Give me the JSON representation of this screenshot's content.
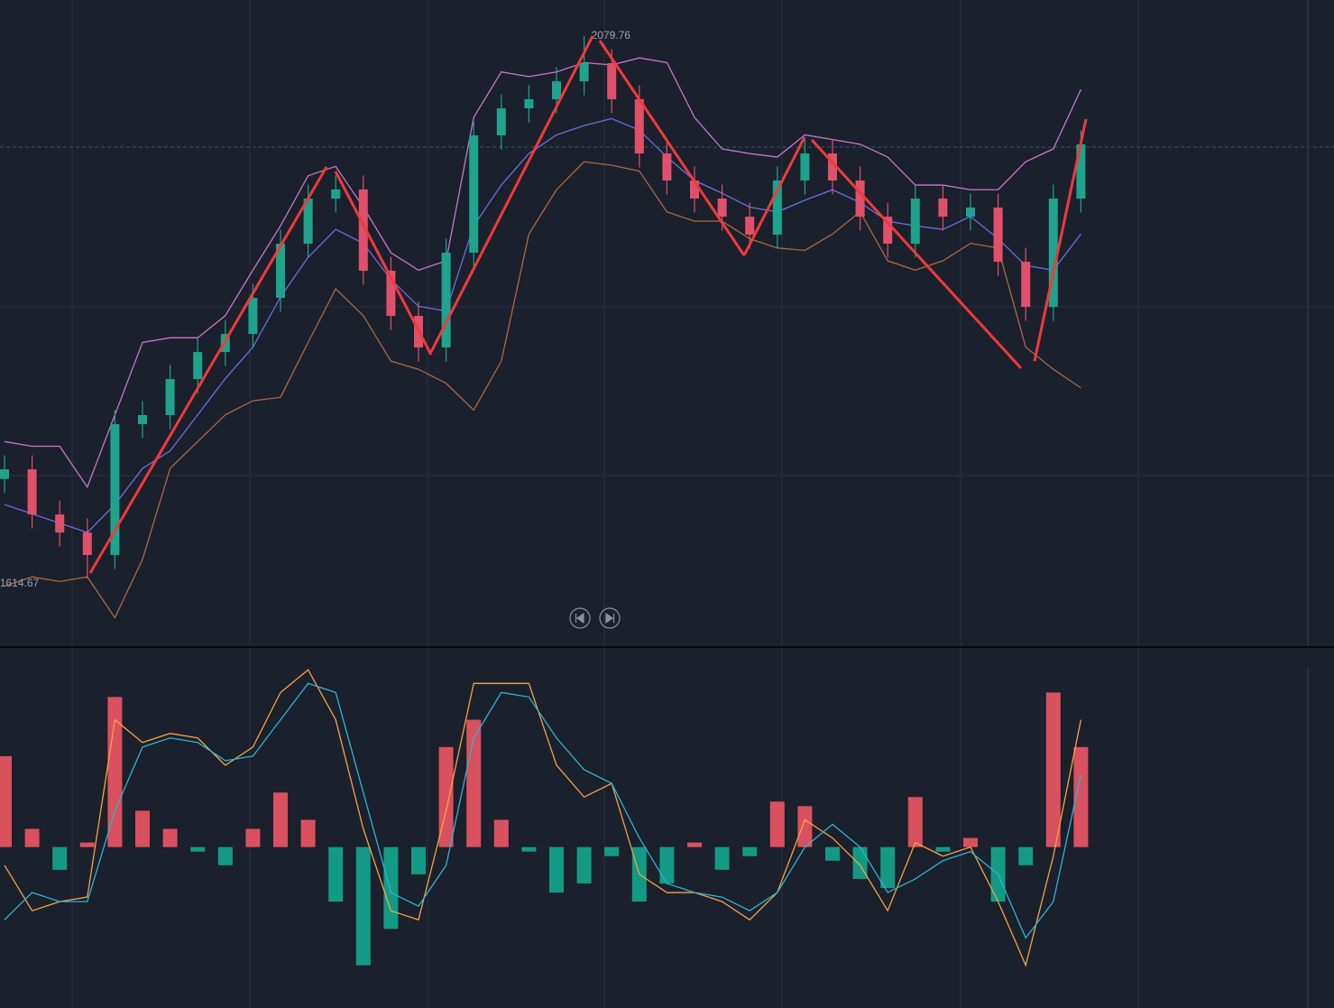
{
  "chart_data": [
    {
      "type": "candlestick",
      "categories": [
        null,
        null,
        null,
        null,
        null,
        null,
        null,
        null,
        null,
        null,
        null,
        null,
        null,
        null,
        null,
        null,
        null,
        null,
        null,
        null,
        null,
        null,
        null,
        null,
        null,
        null,
        null,
        null,
        null,
        null,
        null,
        null,
        null,
        null,
        null,
        null,
        null,
        null,
        null,
        null
      ],
      "open": [
        1700.0,
        1708.2,
        1669.5,
        1654.0,
        1634.7,
        1746.9,
        1754.7,
        1785.6,
        1808.8,
        1824.3,
        1855.3,
        1901.7,
        1940.4,
        1948.2,
        1878.5,
        1839.8,
        1812.7,
        1894.0,
        1994.6,
        2017.8,
        2025.6,
        2041.0,
        2056.5,
        2025.6,
        1979.1,
        1955.9,
        1940.4,
        1924.9,
        1909.5,
        1955.9,
        1979.1,
        1955.9,
        1924.9,
        1901.7,
        1940.4,
        1924.9,
        1932.7,
        1886.2,
        1847.5,
        1940.4
      ],
      "high": [
        1720.2,
        1720.2,
        1681.5,
        1666.0,
        1758.9,
        1766.7,
        1797.6,
        1820.8,
        1836.3,
        1867.3,
        1913.7,
        1952.4,
        1960.2,
        1960.2,
        1890.5,
        1851.8,
        1906.0,
        2006.6,
        2029.8,
        2037.6,
        2053.0,
        2079.76,
        2068.5,
        2037.6,
        1991.1,
        1967.9,
        1952.4,
        1936.9,
        1967.9,
        1991.1,
        1991.1,
        1967.9,
        1936.9,
        1952.4,
        1952.4,
        1944.7,
        1944.7,
        1898.2,
        1952.4,
        1998.9
      ],
      "low": [
        1688.0,
        1657.5,
        1642.0,
        1614.67,
        1622.7,
        1734.9,
        1742.7,
        1773.6,
        1796.8,
        1812.3,
        1843.3,
        1889.7,
        1928.4,
        1866.5,
        1827.8,
        1800.7,
        1800.7,
        1882.0,
        1982.6,
        2005.8,
        2013.6,
        2029.0,
        2013.6,
        1967.1,
        1943.9,
        1928.4,
        1912.9,
        1897.5,
        1897.5,
        1943.9,
        1943.9,
        1912.9,
        1889.7,
        1889.7,
        1912.9,
        1912.9,
        1874.2,
        1835.5,
        1835.5,
        1928.4
      ],
      "close": [
        1708.2,
        1669.5,
        1654.0,
        1634.7,
        1746.9,
        1754.7,
        1785.6,
        1808.8,
        1824.3,
        1855.3,
        1901.7,
        1940.4,
        1948.2,
        1878.5,
        1839.8,
        1812.7,
        1894.0,
        1994.6,
        2017.8,
        2025.6,
        2041.0,
        2056.5,
        2025.6,
        1979.1,
        1955.9,
        1940.4,
        1924.9,
        1909.5,
        1955.9,
        1979.1,
        1955.9,
        1924.9,
        1901.7,
        1940.4,
        1924.9,
        1932.7,
        1886.2,
        1847.5,
        1940.4,
        1986.9
      ],
      "up_color": "#1fa38c",
      "down_color": "#e0506a",
      "bands": [
        {
          "color": "#c678c9",
          "values": [
            1732,
            1728,
            1728,
            1693,
            1755,
            1817,
            1821,
            1821,
            1840,
            1879,
            1917,
            1960,
            1968,
            1933,
            1894,
            1879,
            1887,
            2010,
            2049,
            2045,
            2049,
            2057,
            2055,
            2061,
            2057,
            2010,
            1983,
            1979,
            1976,
            1995,
            1991,
            1987,
            1976,
            1952,
            1952,
            1948,
            1948,
            1972,
            1983,
            2034
          ]
        },
        {
          "color": "#6a6ee0",
          "values": [
            1678,
            1670,
            1662,
            1654,
            1678,
            1709,
            1724,
            1755,
            1786,
            1813,
            1856,
            1890,
            1914,
            1902,
            1871,
            1848,
            1844,
            1917,
            1952,
            1979,
            1995,
            2003,
            2009,
            1999,
            1976,
            1956,
            1945,
            1933,
            1929,
            1939,
            1948,
            1937,
            1921,
            1917,
            1914,
            1925,
            1906,
            1883,
            1879,
            1910
          ]
        },
        {
          "color": "#a86a44",
          "values": [
            1608,
            1616,
            1612,
            1616,
            1581,
            1631,
            1709,
            1732,
            1755,
            1767,
            1770,
            1817,
            1863,
            1840,
            1801,
            1794,
            1782,
            1759,
            1801,
            1910,
            1948,
            1972,
            1969,
            1964,
            1929,
            1921,
            1921,
            1906,
            1898,
            1896,
            1910,
            1929,
            1887,
            1879,
            1887,
            1902,
            1898,
            1813,
            1794,
            1778
          ]
        }
      ],
      "high_label": "2079.76",
      "low_label": "1614.67",
      "ylim": [
        1555.8,
        2110.7
      ]
    },
    {
      "type": "macd",
      "categories": [
        null,
        null,
        null,
        null,
        null,
        null,
        null,
        null,
        null,
        null,
        null,
        null,
        null,
        null,
        null,
        null,
        null,
        null,
        null,
        null,
        null,
        null,
        null,
        null,
        null,
        null,
        null,
        null,
        null,
        null,
        null,
        null,
        null,
        null,
        null,
        null,
        null,
        null,
        null,
        null
      ],
      "histogram": {
        "up_color": "#d9505f",
        "down_color": "#139a84",
        "values": [
          100,
          20,
          -25,
          5,
          165,
          40,
          20,
          -5,
          -20,
          20,
          60,
          30,
          -60,
          -130,
          -90,
          -30,
          110,
          140,
          30,
          -5,
          -50,
          -40,
          -10,
          -60,
          -40,
          5,
          -25,
          -10,
          50,
          45,
          -15,
          -35,
          -45,
          55,
          -5,
          10,
          -60,
          -20,
          170,
          110
        ]
      },
      "lines": [
        {
          "color": "#f5a341",
          "values": [
            -20,
            -70,
            -60,
            -55,
            140,
            115,
            125,
            120,
            90,
            110,
            170,
            195,
            140,
            20,
            -70,
            -80,
            40,
            180,
            180,
            180,
            90,
            55,
            70,
            -30,
            -50,
            -50,
            -60,
            -80,
            -50,
            30,
            10,
            -20,
            -70,
            5,
            -10,
            0,
            -60,
            -130,
            -10,
            140
          ]
        },
        {
          "color": "#2bb5cf",
          "values": [
            -80,
            -50,
            -60,
            -60,
            40,
            110,
            120,
            115,
            95,
            100,
            140,
            180,
            170,
            60,
            -50,
            -65,
            -20,
            120,
            170,
            165,
            120,
            85,
            70,
            10,
            -40,
            -50,
            -55,
            -70,
            -50,
            0,
            25,
            0,
            -50,
            -35,
            -15,
            -5,
            -30,
            -100,
            -60,
            80
          ]
        }
      ],
      "ylim": [
        -177,
        220
      ]
    }
  ]
}
